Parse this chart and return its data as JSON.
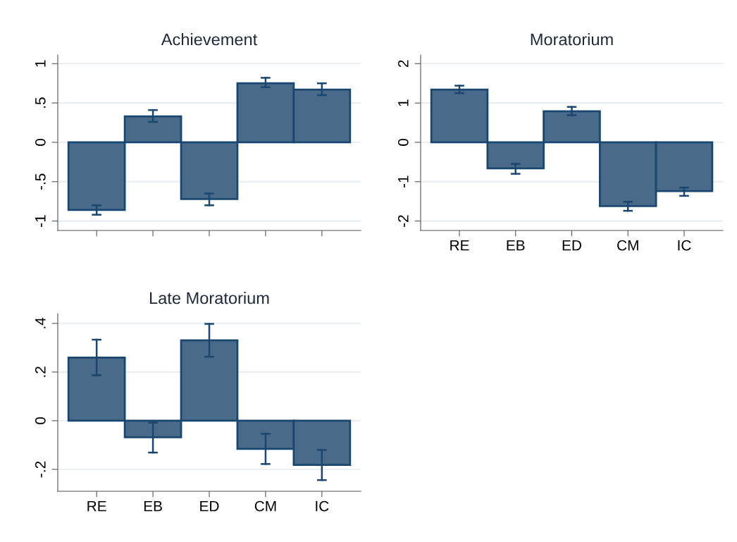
{
  "chart_data": [
    {
      "type": "bar",
      "title": "Achievement",
      "categories": [
        null,
        null,
        null,
        null,
        null
      ],
      "values": [
        -0.86,
        0.33,
        -0.72,
        0.75,
        0.67
      ],
      "errors": [
        [
          -0.92,
          -0.8
        ],
        [
          0.26,
          0.41
        ],
        [
          -0.8,
          -0.65
        ],
        [
          0.7,
          0.82
        ],
        [
          0.6,
          0.75
        ]
      ],
      "color": "#4a6a8a",
      "ylim": [
        -1.12,
        1.11
      ],
      "yticks": [
        {
          "value": -1,
          "label": "-1"
        },
        {
          "value": -0.5,
          "label": "-.5"
        },
        0,
        {
          "value": 0.5,
          "label": ".5"
        },
        1
      ],
      "grid": "y",
      "tick_labels": "y"
    },
    {
      "type": "bar",
      "title": "Moratorium",
      "categories": [
        "RE",
        "EB",
        "ED",
        "CM",
        "IC"
      ],
      "values": [
        1.34,
        -0.66,
        0.79,
        -1.62,
        -1.24
      ],
      "errors": [
        [
          1.25,
          1.44
        ],
        [
          -0.8,
          -0.55
        ],
        [
          0.69,
          0.9
        ],
        [
          -1.74,
          -1.51
        ],
        [
          -1.36,
          -1.15
        ]
      ],
      "color": "#4a6a8a",
      "ylim": [
        -2.24,
        2.22
      ],
      "yticks": [
        -2,
        -1,
        0,
        1,
        2
      ],
      "grid": "y"
    },
    {
      "type": "bar",
      "title": "Late Moratorium",
      "categories": [
        "RE",
        "EB",
        "ED",
        "CM",
        "IC"
      ],
      "values": [
        0.259,
        -0.068,
        0.33,
        -0.116,
        -0.182
      ],
      "errors": [
        [
          0.187,
          0.333
        ],
        [
          -0.131,
          -0.008
        ],
        [
          0.263,
          0.398
        ],
        [
          -0.178,
          -0.054
        ],
        [
          -0.244,
          -0.12
        ]
      ],
      "color": "#4a6a8a",
      "ylim": [
        -0.29,
        0.44
      ],
      "yticks": [
        {
          "value": -0.2,
          "label": "-.2"
        },
        0,
        {
          "value": 0.2,
          "label": ".2"
        },
        {
          "value": 0.4,
          "label": ".4"
        }
      ],
      "grid": "y"
    }
  ]
}
